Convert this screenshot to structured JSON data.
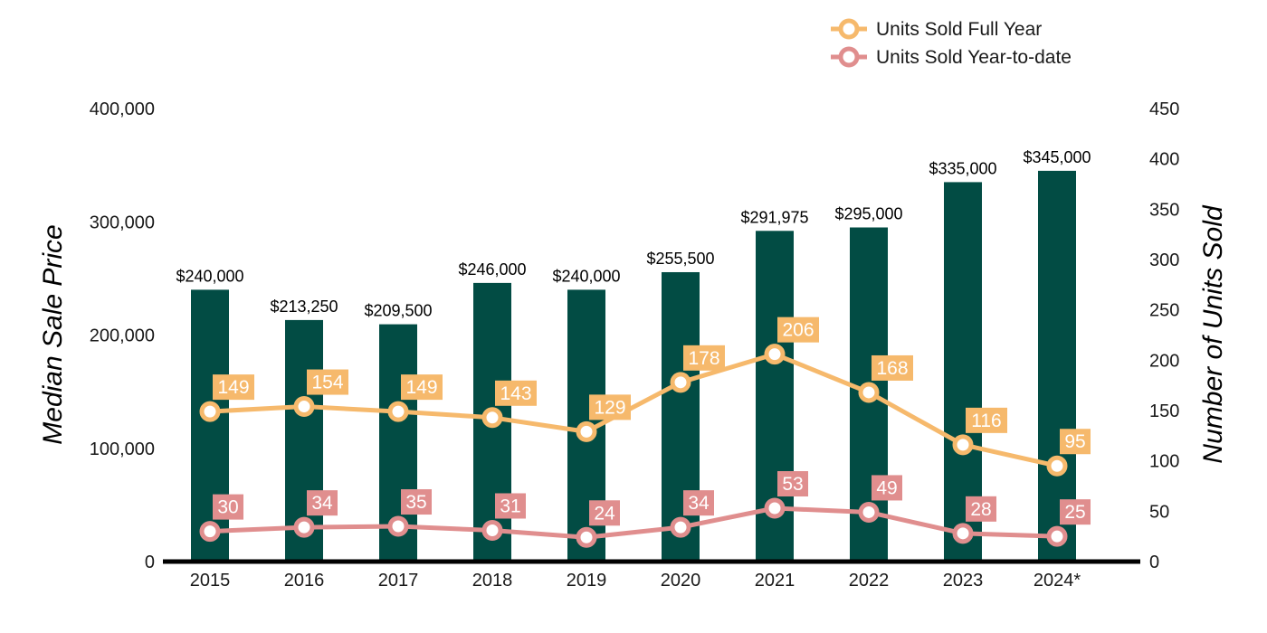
{
  "chart_data": {
    "type": "bar",
    "categories": [
      "2015",
      "2016",
      "2017",
      "2018",
      "2019",
      "2020",
      "2021",
      "2022",
      "2023",
      "2024*"
    ],
    "bars": {
      "axis": "left",
      "values": [
        240000,
        213250,
        209500,
        246000,
        240000,
        255500,
        291975,
        295000,
        335000,
        345000
      ],
      "labels": [
        "$240,000",
        "$213,250",
        "$209,500",
        "$246,000",
        "$240,000",
        "$255,500",
        "$291,975",
        "$295,000",
        "$335,000",
        "$345,000"
      ],
      "color": "#024c44"
    },
    "series": [
      {
        "name": "Units Sold Full Year",
        "type": "line",
        "axis": "right",
        "values": [
          149,
          154,
          149,
          143,
          129,
          178,
          206,
          168,
          116,
          95
        ],
        "color": "#f6b96c"
      },
      {
        "name": "Units Sold Year-to-date",
        "type": "line",
        "axis": "right",
        "values": [
          30,
          34,
          35,
          31,
          24,
          34,
          53,
          49,
          28,
          25
        ],
        "color": "#e08e8e"
      }
    ],
    "ylabel": "Median Sale Price",
    "y2label": "Number of Units Sold",
    "ylim": [
      0,
      400000
    ],
    "y2lim": [
      0,
      450
    ],
    "yticks": [
      "0",
      "100,000",
      "200,000",
      "300,000",
      "400,000"
    ],
    "y2ticks": [
      "0",
      "50",
      "100",
      "150",
      "200",
      "250",
      "300",
      "350",
      "400",
      "450"
    ],
    "grid": false,
    "legend": "top-right"
  }
}
